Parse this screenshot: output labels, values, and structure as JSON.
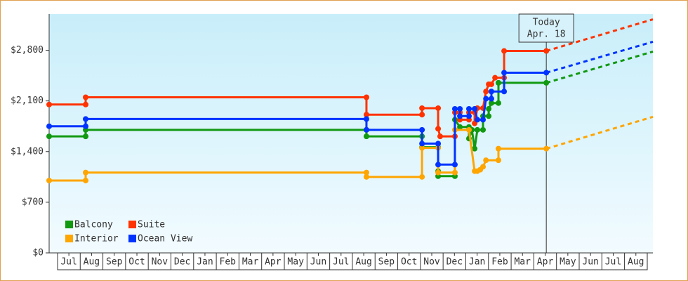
{
  "chart_data": {
    "type": "line",
    "xlim": [
      -0.37,
      26.25
    ],
    "xticks": [
      {
        "value": 0.5,
        "label": "Jul"
      },
      {
        "value": 1.5,
        "label": "Aug"
      },
      {
        "value": 2.5,
        "label": "Sep"
      },
      {
        "value": 3.5,
        "label": "Oct"
      },
      {
        "value": 4.5,
        "label": "Nov"
      },
      {
        "value": 5.5,
        "label": "Dec"
      },
      {
        "value": 6.5,
        "label": "Jan"
      },
      {
        "value": 7.5,
        "label": "Feb"
      },
      {
        "value": 8.5,
        "label": "Mar"
      },
      {
        "value": 9.5,
        "label": "Apr"
      },
      {
        "value": 10.5,
        "label": "May"
      },
      {
        "value": 11.5,
        "label": "Jun"
      },
      {
        "value": 12.5,
        "label": "Jul"
      },
      {
        "value": 13.5,
        "label": "Aug"
      },
      {
        "value": 14.5,
        "label": "Sep"
      },
      {
        "value": 15.5,
        "label": "Oct"
      },
      {
        "value": 16.5,
        "label": "Nov"
      },
      {
        "value": 17.5,
        "label": "Dec"
      },
      {
        "value": 18.5,
        "label": "Jan"
      },
      {
        "value": 19.5,
        "label": "Feb"
      },
      {
        "value": 20.5,
        "label": "Mar"
      },
      {
        "value": 21.5,
        "label": "Apr"
      },
      {
        "value": 22.5,
        "label": "May"
      },
      {
        "value": 23.5,
        "label": "Jun"
      },
      {
        "value": 24.5,
        "label": "Jul"
      },
      {
        "value": 25.5,
        "label": "Aug"
      }
    ],
    "ylim": [
      0,
      3300
    ],
    "yticks": [
      {
        "value": 0,
        "label": "$0"
      },
      {
        "value": 700,
        "label": "$700"
      },
      {
        "value": 1400,
        "label": "$1,400"
      },
      {
        "value": 2100,
        "label": "$2,100"
      },
      {
        "value": 2800,
        "label": "$2,800"
      }
    ],
    "today": {
      "x": 21.55,
      "label": [
        "Today",
        "Apr. 18"
      ]
    },
    "series": [
      {
        "name": "Balcony",
        "color": "#119911",
        "x": [
          -0.37,
          1.24,
          1.24,
          13.62,
          13.62,
          16.07,
          16.07,
          16.78,
          16.78,
          16.78,
          17.52,
          17.52,
          17.74,
          18.14,
          18.14,
          18.27,
          18.39,
          18.51,
          18.76,
          18.76,
          19.01,
          19.01,
          19.13,
          19.44,
          19.44,
          21.55
        ],
        "values": [
          1610,
          1610,
          1700,
          1700,
          1610,
          1610,
          1460,
          1460,
          1130,
          1060,
          1060,
          1840,
          1740,
          1740,
          1580,
          1700,
          1440,
          1700,
          1700,
          1890,
          1890,
          1990,
          2070,
          2070,
          2350,
          2350
        ],
        "projection": 2781
      },
      {
        "name": "Suite",
        "color": "#ff3300",
        "x": [
          -0.37,
          1.24,
          1.24,
          13.62,
          13.62,
          16.07,
          16.07,
          16.78,
          16.78,
          16.87,
          17.52,
          17.52,
          17.74,
          17.74,
          18.14,
          18.14,
          18.39,
          18.39,
          18.51,
          18.76,
          18.89,
          19.01,
          19.13,
          19.29,
          19.69,
          19.69,
          21.55
        ],
        "values": [
          2050,
          2050,
          2150,
          2150,
          1910,
          1910,
          2000,
          2000,
          1715,
          1610,
          1610,
          1940,
          1940,
          1840,
          1840,
          1940,
          1940,
          1790,
          2000,
          2000,
          2230,
          2330,
          2330,
          2420,
          2420,
          2790,
          2790
        ],
        "projection": 3227
      },
      {
        "name": "Interior",
        "color": "#ffa500",
        "x": [
          -0.37,
          1.24,
          1.24,
          13.62,
          13.62,
          16.07,
          16.07,
          16.78,
          16.78,
          17.52,
          17.52,
          18.14,
          18.39,
          18.51,
          18.64,
          18.76,
          18.89,
          19.44,
          19.44,
          21.55
        ],
        "values": [
          1000,
          1000,
          1110,
          1110,
          1050,
          1050,
          1450,
          1450,
          1110,
          1110,
          1700,
          1700,
          1130,
          1130,
          1150,
          1190,
          1280,
          1280,
          1440,
          1440
        ],
        "projection": 1880
      },
      {
        "name": "Ocean View",
        "color": "#0033ff",
        "x": [
          -0.37,
          1.24,
          1.24,
          13.62,
          13.62,
          16.07,
          16.07,
          16.78,
          16.78,
          17.52,
          17.52,
          17.74,
          17.74,
          18.14,
          18.14,
          18.39,
          18.51,
          18.76,
          18.89,
          19.13,
          19.13,
          19.69,
          19.69,
          21.55
        ],
        "values": [
          1750,
          1750,
          1850,
          1850,
          1700,
          1700,
          1510,
          1510,
          1220,
          1220,
          1990,
          1990,
          1890,
          1890,
          1990,
          1990,
          1840,
          1840,
          2130,
          2130,
          2230,
          2230,
          2490,
          2490
        ],
        "projection": 2917
      }
    ]
  }
}
